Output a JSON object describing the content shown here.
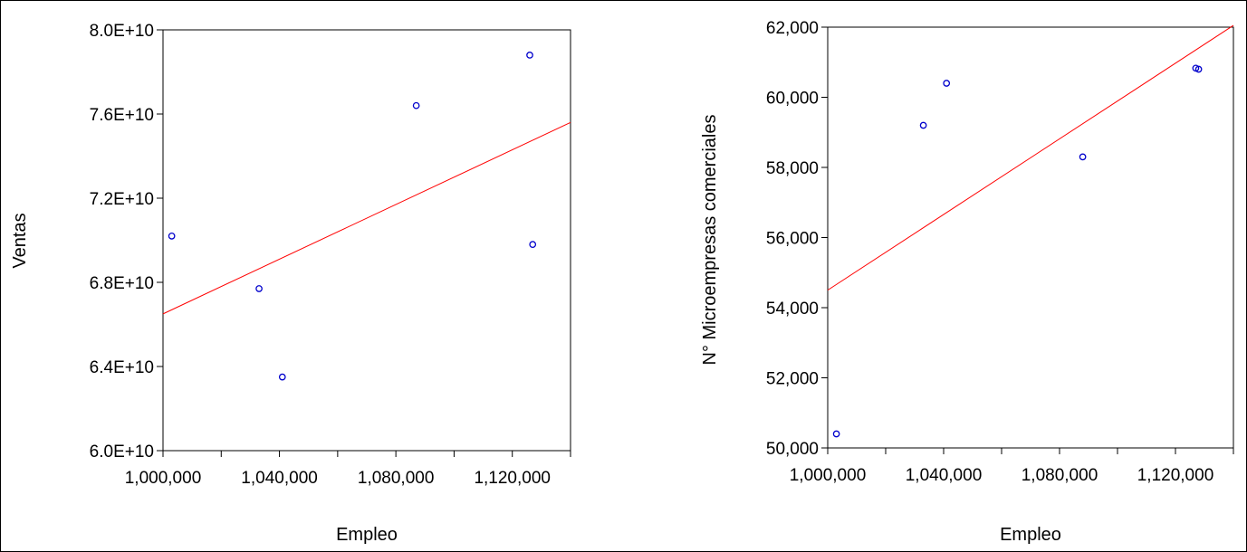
{
  "chart_data": [
    {
      "type": "scatter",
      "xlabel": "Empleo",
      "ylabel": "Ventas",
      "xlim": [
        1000000,
        1140000
      ],
      "ylim": [
        60000000000,
        80000000000
      ],
      "x_ticks": [
        1000000,
        1040000,
        1080000,
        1120000
      ],
      "x_tick_labels": [
        "1,000,000",
        "1,040,000",
        "1,080,000",
        "1,120,000"
      ],
      "y_ticks": [
        60000000000,
        64000000000,
        68000000000,
        72000000000,
        76000000000,
        80000000000
      ],
      "y_tick_labels": [
        "6.0E+10",
        "6.4E+10",
        "6.8E+10",
        "7.2E+10",
        "7.6E+10",
        "8.0E+10"
      ],
      "points": [
        {
          "x": 1003000,
          "y": 70200000000
        },
        {
          "x": 1033000,
          "y": 67700000000
        },
        {
          "x": 1041000,
          "y": 63500000000
        },
        {
          "x": 1087000,
          "y": 76400000000
        },
        {
          "x": 1126000,
          "y": 78800000000
        },
        {
          "x": 1127000,
          "y": 69800000000
        }
      ],
      "fit_line": {
        "x": [
          1000000,
          1140000
        ],
        "y": [
          66500000000,
          75600000000
        ]
      },
      "grid": false,
      "colors": {
        "points": "#0000cc",
        "fit_line": "#ff0000",
        "axes": "#000000"
      }
    },
    {
      "type": "scatter",
      "xlabel": "Empleo",
      "ylabel": "N° Microempresas comerciales",
      "xlim": [
        1000000,
        1140000
      ],
      "ylim": [
        50000,
        62000
      ],
      "x_ticks": [
        1000000,
        1040000,
        1080000,
        1120000
      ],
      "x_tick_labels": [
        "1,000,000",
        "1,040,000",
        "1,080,000",
        "1,120,000"
      ],
      "y_ticks": [
        50000,
        52000,
        54000,
        56000,
        58000,
        60000,
        62000
      ],
      "y_tick_labels": [
        "50,000",
        "52,000",
        "54,000",
        "56,000",
        "58,000",
        "60,000",
        "62,000"
      ],
      "points": [
        {
          "x": 1003000,
          "y": 50400
        },
        {
          "x": 1033000,
          "y": 59200
        },
        {
          "x": 1041000,
          "y": 60400
        },
        {
          "x": 1088000,
          "y": 58300
        },
        {
          "x": 1127000,
          "y": 60830
        },
        {
          "x": 1128000,
          "y": 60800
        }
      ],
      "fit_line": {
        "x": [
          1000000,
          1140000
        ],
        "y": [
          54500,
          62050
        ]
      },
      "grid": false,
      "colors": {
        "points": "#0000cc",
        "fit_line": "#ff0000",
        "axes": "#000000"
      }
    }
  ]
}
